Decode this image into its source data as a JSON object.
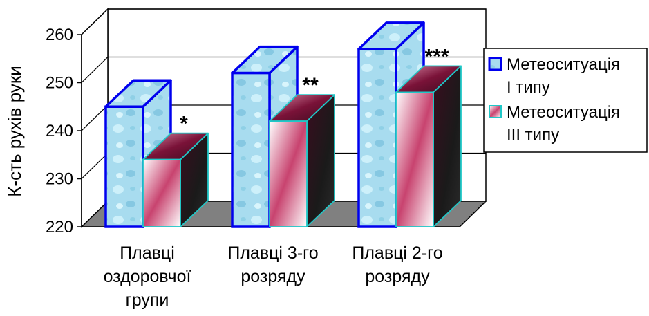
{
  "chart_data": {
    "type": "bar",
    "ylabel": "К-сть рухів руки",
    "ylim": [
      220,
      260
    ],
    "yticks": [
      "220",
      "230",
      "240",
      "250",
      "260"
    ],
    "categories": [
      [
        "Плавці",
        "оздоровчої",
        "групи"
      ],
      [
        "Плавці 3-го",
        "розряду"
      ],
      [
        "Плавці 2-го",
        "розряду"
      ]
    ],
    "series": [
      {
        "name": "Метеоситуація І типу",
        "legend_lines": [
          "Метеоситуація",
          "І типу"
        ],
        "values": [
          245,
          252,
          257
        ],
        "color": "#a9e3f5"
      },
      {
        "name": "Метеоситуація ІІІ типу",
        "legend_lines": [
          "Метеоситуація",
          "ІІІ типу"
        ],
        "values": [
          234,
          242,
          248
        ],
        "color": "#8b1a4a"
      }
    ],
    "annotations": [
      "*",
      "**",
      "***"
    ],
    "grid": true,
    "legend": "right"
  }
}
